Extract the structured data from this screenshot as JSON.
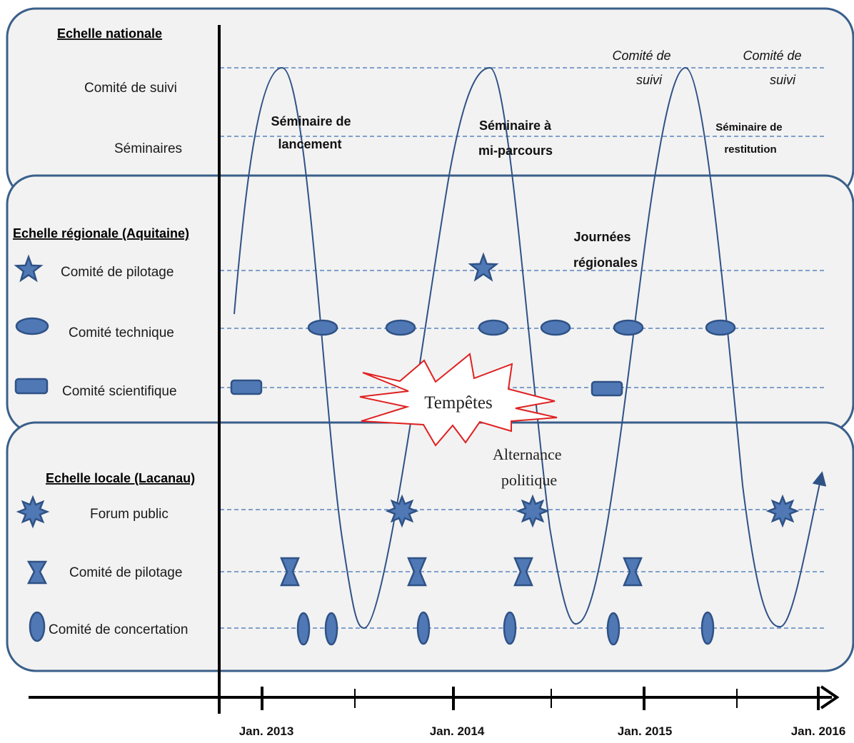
{
  "national": {
    "title": "Echelle nationale",
    "rows": [
      "Comité de suivi",
      "Séminaires"
    ],
    "seminar1": [
      "Séminaire de",
      "lancement"
    ],
    "seminar2": [
      "Séminaire à",
      "mi-parcours"
    ],
    "seminar3": [
      "Séminaire de",
      "restitution"
    ],
    "suivi1": [
      "Comité de",
      "suivi"
    ],
    "suivi2": [
      "Comité de",
      "suivi"
    ]
  },
  "regional": {
    "title": "Echelle régionale (Aquitaine)",
    "rows": [
      "Comité de pilotage",
      "Comité technique",
      "Comité scientifique"
    ],
    "journees": [
      "Journées",
      "régionales"
    ]
  },
  "local": {
    "title": "Echelle locale (Lacanau)",
    "rows": [
      "Forum public",
      "Comité de pilotage",
      "Comité de concertation"
    ]
  },
  "events": {
    "tempetes": "Tempêtes",
    "alternance": [
      "Alternance",
      "politique"
    ]
  },
  "timeline": {
    "ticks": [
      "Jan. 2013",
      "Jan. 2014",
      "Jan. 2015",
      "Jan. 2016"
    ]
  },
  "colors": {
    "marker": "#4f78b5",
    "marker_stroke": "#2f5286",
    "panel_border": "#3a5f8a",
    "guide": "#5b84c0",
    "burst": "#e02020"
  },
  "icons": {
    "regional_pilotage": "star-icon",
    "technique": "horizontal-ellipse-icon",
    "scientifique": "rounded-rectangle-icon",
    "forum": "burst-star-icon",
    "local_pilotage": "hourglass-icon",
    "concertation": "vertical-ellipse-icon"
  }
}
